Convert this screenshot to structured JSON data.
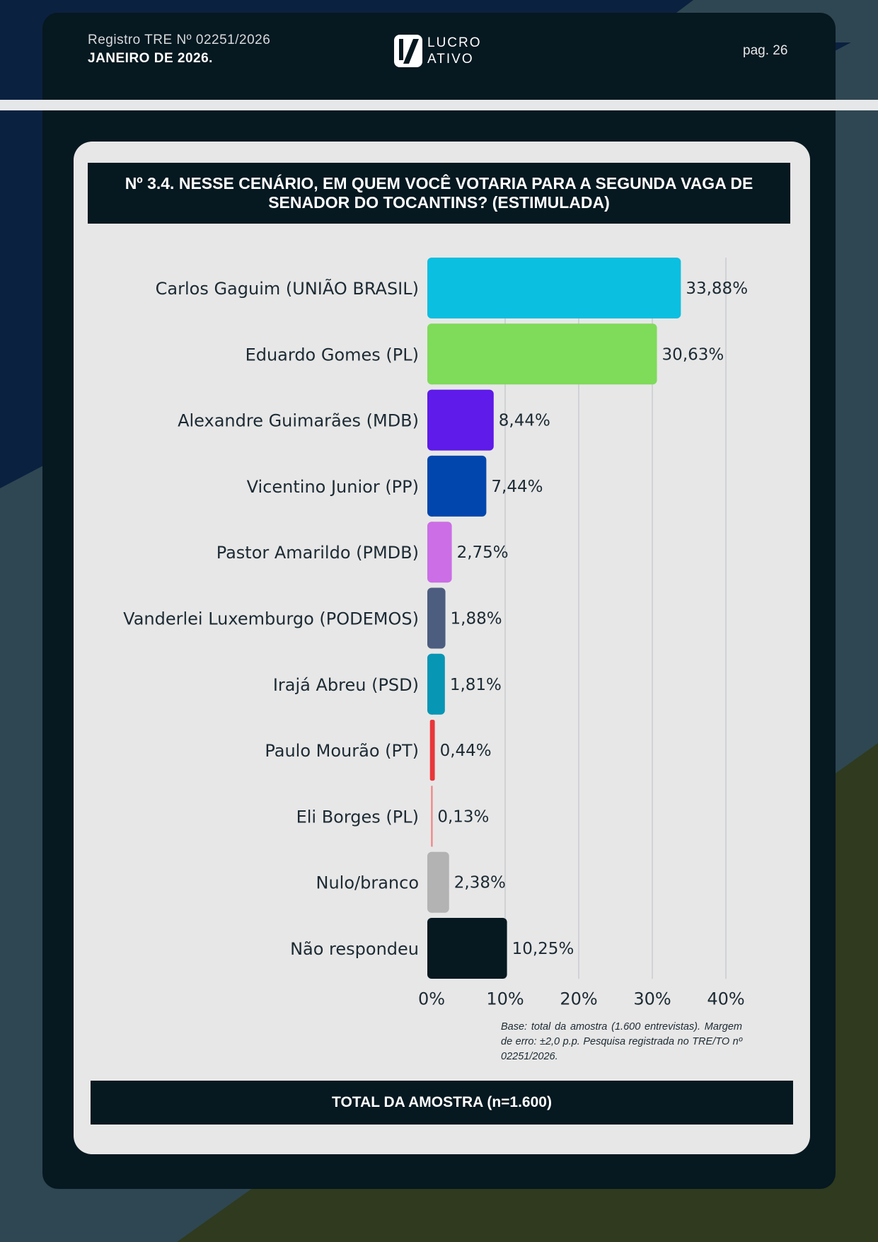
{
  "header": {
    "registro": "Registro TRE Nº 02251/2026",
    "date": "JANEIRO DE 2026.",
    "page": "pag. 26",
    "logo_line1": "LUCRO",
    "logo_line2": "ATIVO"
  },
  "title": "Nº 3.4. NESSE CENÁRIO, EM QUEM VOCÊ VOTARIA PARA A SEGUNDA VAGA DE SENADOR DO TOCANTINS? (ESTIMULADA)",
  "footnote": "Base: total da amostra (1.600 entrevistas). Margem de erro: ±2,0 p.p. Pesquisa registrada no TRE/TO nº 02251/2026.",
  "total": "TOTAL DA AMOSTRA (n=1.600)",
  "chart_data": {
    "type": "bar",
    "orientation": "horizontal",
    "categories": [
      "Carlos Gaguim (UNIÃO BRASIL)",
      "Eduardo Gomes (PL)",
      "Alexandre Guimarães (MDB)",
      "Vicentino Junior (PP)",
      "Pastor Amarildo (PMDB)",
      "Vanderlei Luxemburgo (PODEMOS)",
      "Irajá Abreu (PSD)",
      "Paulo Mourão (PT)",
      "Eli Borges (PL)",
      "Nulo/branco",
      "Não respondeu"
    ],
    "values": [
      33.88,
      30.63,
      8.44,
      7.44,
      2.75,
      1.88,
      1.81,
      0.44,
      0.13,
      2.38,
      10.25
    ],
    "value_labels": [
      "33,88%",
      "30,63%",
      "8,44%",
      "7,44%",
      "2,75%",
      "1,88%",
      "1,81%",
      "0,44%",
      "0,13%",
      "2,38%",
      "10,25%"
    ],
    "colors": [
      "#0bbfe0",
      "#7fdb5a",
      "#5e1be9",
      "#0046ad",
      "#cc6ee6",
      "#4d5d80",
      "#0896b5",
      "#e8363a",
      "#f08080",
      "#b3b3b3",
      "#061820"
    ],
    "xlim": [
      0,
      40
    ],
    "xticks": [
      0,
      10,
      20,
      30,
      40
    ],
    "xtick_labels": [
      "0%",
      "10%",
      "20%",
      "30%",
      "40%"
    ],
    "grid": true
  }
}
